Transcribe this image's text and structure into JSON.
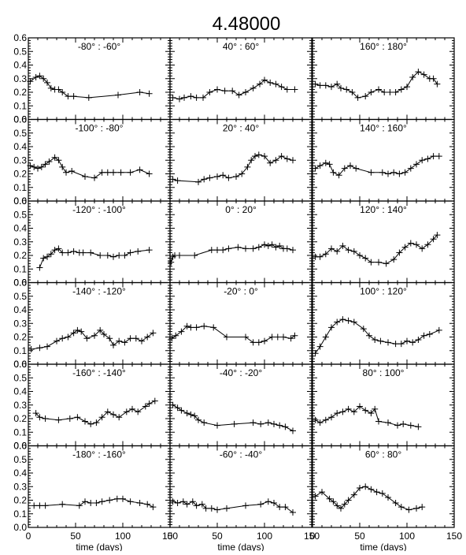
{
  "title": "4.48000",
  "xlabel": "time (days)",
  "chart_data": {
    "type": "line",
    "title": "4.48000",
    "xlabel": "time (days)",
    "ylabel": "",
    "xlim": [
      0,
      150
    ],
    "ylim": [
      0.0,
      0.6
    ],
    "xticks": [
      0,
      50,
      100,
      150
    ],
    "yticks": [
      0.0,
      0.1,
      0.2,
      0.3,
      0.4,
      0.5,
      0.6
    ],
    "ytick_labels": [
      "0.0",
      "0.1",
      "0.2",
      "0.3",
      "0.4",
      "0.5",
      "0.6"
    ],
    "grid": false,
    "layout": "6 rows x 3 columns",
    "panels": [
      {
        "title": "-80° : -60°",
        "x": [
          2,
          8,
          12,
          16,
          20,
          24,
          28,
          32,
          36,
          42,
          48,
          64,
          95,
          118,
          128
        ],
        "y": [
          0.28,
          0.31,
          0.32,
          0.3,
          0.27,
          0.23,
          0.22,
          0.22,
          0.2,
          0.17,
          0.17,
          0.16,
          0.18,
          0.2,
          0.19
        ]
      },
      {
        "title": "40° : 60°",
        "x": [
          3,
          10,
          15,
          22,
          28,
          35,
          42,
          50,
          58,
          66,
          73,
          80,
          88,
          95,
          100,
          106,
          112,
          118,
          124,
          132
        ],
        "y": [
          0.16,
          0.15,
          0.16,
          0.17,
          0.16,
          0.16,
          0.2,
          0.22,
          0.21,
          0.21,
          0.18,
          0.2,
          0.23,
          0.26,
          0.29,
          0.27,
          0.26,
          0.24,
          0.22,
          0.22
        ]
      },
      {
        "title": "160° : 180°",
        "x": [
          3,
          8,
          14,
          20,
          26,
          30,
          36,
          42,
          48,
          56,
          62,
          70,
          76,
          82,
          88,
          94,
          100,
          106,
          112,
          118,
          124,
          128,
          132
        ],
        "y": [
          0.26,
          0.25,
          0.25,
          0.24,
          0.26,
          0.23,
          0.22,
          0.2,
          0.16,
          0.17,
          0.2,
          0.22,
          0.2,
          0.2,
          0.2,
          0.22,
          0.24,
          0.31,
          0.35,
          0.33,
          0.3,
          0.3,
          0.26
        ]
      },
      {
        "title": "-100° : -80°",
        "x": [
          2,
          6,
          10,
          14,
          18,
          22,
          28,
          32,
          36,
          40,
          46,
          60,
          70,
          78,
          84,
          90,
          98,
          108,
          118,
          128
        ],
        "y": [
          0.26,
          0.25,
          0.24,
          0.25,
          0.27,
          0.29,
          0.32,
          0.3,
          0.25,
          0.21,
          0.22,
          0.18,
          0.17,
          0.21,
          0.21,
          0.21,
          0.21,
          0.21,
          0.23,
          0.2
        ]
      },
      {
        "title": "20° : 40°",
        "x": [
          3,
          8,
          30,
          36,
          42,
          50,
          56,
          62,
          70,
          76,
          82,
          86,
          90,
          94,
          100,
          106,
          112,
          118,
          124,
          130
        ],
        "y": [
          0.16,
          0.15,
          0.14,
          0.16,
          0.17,
          0.18,
          0.19,
          0.17,
          0.18,
          0.2,
          0.25,
          0.3,
          0.33,
          0.34,
          0.33,
          0.28,
          0.3,
          0.33,
          0.31,
          0.3
        ]
      },
      {
        "title": "140° : 160°",
        "x": [
          3,
          8,
          14,
          18,
          22,
          28,
          34,
          40,
          46,
          62,
          74,
          80,
          86,
          92,
          98,
          104,
          110,
          116,
          122,
          128,
          134
        ],
        "y": [
          0.24,
          0.26,
          0.28,
          0.27,
          0.21,
          0.19,
          0.24,
          0.26,
          0.24,
          0.21,
          0.21,
          0.2,
          0.21,
          0.2,
          0.21,
          0.24,
          0.27,
          0.3,
          0.31,
          0.33,
          0.33
        ]
      },
      {
        "title": "-120° : -100°",
        "x": [
          12,
          16,
          20,
          24,
          28,
          32,
          36,
          42,
          48,
          54,
          58,
          66,
          76,
          84,
          90,
          96,
          102,
          108,
          116,
          128
        ],
        "y": [
          0.11,
          0.18,
          0.19,
          0.21,
          0.24,
          0.25,
          0.22,
          0.22,
          0.23,
          0.22,
          0.22,
          0.22,
          0.2,
          0.2,
          0.19,
          0.2,
          0.2,
          0.22,
          0.23,
          0.24
        ]
      },
      {
        "title": "0° : 20°",
        "x": [
          1,
          3,
          5,
          10,
          26,
          44,
          50,
          56,
          62,
          72,
          80,
          88,
          94,
          100,
          104,
          108,
          112,
          116,
          120,
          124,
          130
        ],
        "y": [
          0.15,
          0.19,
          0.2,
          0.2,
          0.2,
          0.24,
          0.24,
          0.24,
          0.25,
          0.26,
          0.25,
          0.25,
          0.26,
          0.28,
          0.27,
          0.28,
          0.26,
          0.27,
          0.25,
          0.25,
          0.24
        ]
      },
      {
        "title": "120° : 140°",
        "x": [
          3,
          8,
          14,
          20,
          26,
          32,
          38,
          44,
          50,
          56,
          62,
          70,
          78,
          86,
          92,
          98,
          104,
          110,
          116,
          122,
          128,
          132
        ],
        "y": [
          0.19,
          0.19,
          0.21,
          0.25,
          0.23,
          0.27,
          0.24,
          0.23,
          0.2,
          0.18,
          0.15,
          0.15,
          0.14,
          0.17,
          0.22,
          0.26,
          0.29,
          0.28,
          0.25,
          0.28,
          0.32,
          0.35
        ]
      },
      {
        "title": "-140° : -120°",
        "x": [
          3,
          12,
          20,
          30,
          36,
          42,
          48,
          52,
          56,
          62,
          70,
          76,
          80,
          86,
          90,
          96,
          102,
          108,
          114,
          120,
          126,
          132
        ],
        "y": [
          0.11,
          0.12,
          0.13,
          0.17,
          0.19,
          0.2,
          0.23,
          0.25,
          0.24,
          0.19,
          0.21,
          0.25,
          0.22,
          0.19,
          0.14,
          0.17,
          0.16,
          0.19,
          0.19,
          0.17,
          0.2,
          0.23
        ]
      },
      {
        "title": "-20° : 0°",
        "x": [
          2,
          6,
          12,
          18,
          22,
          28,
          36,
          46,
          60,
          80,
          88,
          94,
          100,
          108,
          114,
          120,
          128,
          132
        ],
        "y": [
          0.19,
          0.21,
          0.24,
          0.28,
          0.27,
          0.27,
          0.28,
          0.27,
          0.2,
          0.2,
          0.16,
          0.16,
          0.17,
          0.2,
          0.2,
          0.2,
          0.19,
          0.21
        ]
      },
      {
        "title": "100° : 120°",
        "x": [
          3,
          8,
          14,
          20,
          26,
          32,
          38,
          44,
          54,
          60,
          66,
          72,
          80,
          88,
          94,
          100,
          106,
          112,
          118,
          124,
          134
        ],
        "y": [
          0.08,
          0.13,
          0.2,
          0.27,
          0.31,
          0.33,
          0.32,
          0.31,
          0.26,
          0.21,
          0.18,
          0.17,
          0.16,
          0.15,
          0.15,
          0.17,
          0.16,
          0.18,
          0.21,
          0.22,
          0.25
        ]
      },
      {
        "title": "-160° : -140°",
        "x": [
          8,
          12,
          18,
          32,
          44,
          52,
          60,
          66,
          72,
          78,
          84,
          90,
          96,
          104,
          110,
          116,
          124,
          128,
          134
        ],
        "y": [
          0.24,
          0.21,
          0.2,
          0.19,
          0.2,
          0.21,
          0.18,
          0.16,
          0.17,
          0.21,
          0.25,
          0.23,
          0.21,
          0.25,
          0.27,
          0.25,
          0.29,
          0.31,
          0.33
        ]
      },
      {
        "title": "-40° : -20°",
        "x": [
          3,
          8,
          12,
          18,
          22,
          26,
          30,
          36,
          50,
          68,
          88,
          96,
          104,
          110,
          116,
          122,
          130
        ],
        "y": [
          0.3,
          0.28,
          0.26,
          0.24,
          0.23,
          0.22,
          0.19,
          0.17,
          0.15,
          0.16,
          0.17,
          0.16,
          0.17,
          0.16,
          0.15,
          0.14,
          0.11
        ]
      },
      {
        "title": "80° : 100°",
        "x": [
          3,
          8,
          14,
          20,
          26,
          32,
          38,
          44,
          50,
          56,
          62,
          66,
          70,
          80,
          90,
          96,
          104,
          112
        ],
        "y": [
          0.19,
          0.17,
          0.19,
          0.21,
          0.24,
          0.25,
          0.27,
          0.25,
          0.29,
          0.26,
          0.24,
          0.27,
          0.18,
          0.17,
          0.15,
          0.16,
          0.15,
          0.14
        ]
      },
      {
        "title": "-180° : -160°",
        "x": [
          6,
          12,
          18,
          36,
          54,
          60,
          66,
          72,
          78,
          86,
          94,
          100,
          108,
          118,
          126,
          132
        ],
        "y": [
          0.16,
          0.16,
          0.16,
          0.17,
          0.16,
          0.19,
          0.18,
          0.18,
          0.19,
          0.2,
          0.21,
          0.21,
          0.19,
          0.18,
          0.17,
          0.15
        ]
      },
      {
        "title": "-60° : -40°",
        "x": [
          3,
          8,
          14,
          18,
          24,
          28,
          34,
          38,
          44,
          50,
          60,
          80,
          96,
          104,
          110,
          116,
          122,
          130
        ],
        "y": [
          0.19,
          0.18,
          0.19,
          0.17,
          0.19,
          0.16,
          0.17,
          0.14,
          0.14,
          0.13,
          0.14,
          0.16,
          0.17,
          0.19,
          0.18,
          0.15,
          0.15,
          0.11
        ]
      },
      {
        "title": "60° : 80°",
        "x": [
          3,
          10,
          18,
          22,
          26,
          30,
          34,
          38,
          44,
          50,
          56,
          62,
          68,
          74,
          80,
          88,
          94,
          102,
          110,
          116
        ],
        "y": [
          0.23,
          0.26,
          0.21,
          0.19,
          0.16,
          0.14,
          0.17,
          0.2,
          0.24,
          0.29,
          0.3,
          0.28,
          0.26,
          0.25,
          0.22,
          0.18,
          0.15,
          0.13,
          0.14,
          0.15
        ]
      }
    ]
  }
}
